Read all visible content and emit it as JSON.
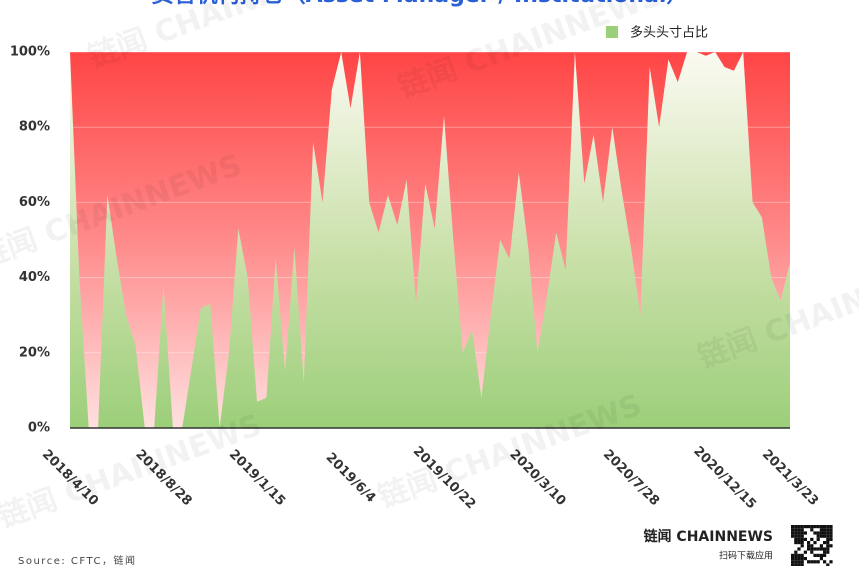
{
  "chart_data": {
    "type": "area",
    "title": "资管机构持仓（Asset Manager / Institutional）",
    "categories": [
      "2018/4/10",
      null,
      null,
      null,
      null,
      null,
      null,
      null,
      null,
      null,
      "2018/8/28",
      null,
      null,
      null,
      null,
      null,
      null,
      null,
      null,
      null,
      "2019/1/15",
      null,
      null,
      null,
      null,
      null,
      null,
      null,
      null,
      null,
      "2019/6/4",
      null,
      null,
      null,
      null,
      null,
      null,
      null,
      null,
      null,
      "2019/10/22",
      null,
      null,
      null,
      null,
      null,
      null,
      null,
      null,
      null,
      "2020/3/10",
      null,
      null,
      null,
      null,
      null,
      null,
      null,
      null,
      null,
      "2020/7/28",
      null,
      null,
      null,
      null,
      null,
      null,
      null,
      null,
      null,
      "2020/12/15",
      null,
      null,
      null,
      null,
      null,
      null,
      "2021/3/23"
    ],
    "series": [
      {
        "name": "多头头寸占比",
        "color": "#9ccf7a",
        "values": [
          100,
          40,
          0,
          0,
          62,
          45,
          30,
          22,
          0,
          0,
          38,
          0,
          0,
          16,
          32,
          33,
          0,
          20,
          53,
          40,
          7,
          8,
          45,
          15,
          48,
          12,
          76,
          60,
          90,
          100,
          85,
          100,
          60,
          52,
          62,
          54,
          66,
          33,
          65,
          53,
          83,
          50,
          20,
          26,
          8,
          30,
          50,
          45,
          68,
          48,
          20,
          35,
          52,
          42,
          100,
          65,
          78,
          60,
          80,
          63,
          48,
          30,
          96,
          80,
          98,
          92,
          100,
          100,
          99,
          100,
          96,
          95,
          100,
          60,
          56,
          40,
          34,
          44
        ]
      }
    ],
    "above_color": "#ff4545",
    "ylim": [
      0,
      100
    ],
    "yticks": [
      {
        "value": 0,
        "label": "0%"
      },
      {
        "value": 20,
        "label": "20%"
      },
      {
        "value": 40,
        "label": "40%"
      },
      {
        "value": 60,
        "label": "60%"
      },
      {
        "value": 80,
        "label": "80%"
      },
      {
        "value": 100,
        "label": "100%"
      }
    ],
    "grid": true,
    "legend": "top-right",
    "source": "Source: CFTC，链闻"
  },
  "watermark": "链闻 CHAINNEWS",
  "logo": {
    "brand": "链闻 CHAINNEWS",
    "caption": "扫码下载应用"
  }
}
